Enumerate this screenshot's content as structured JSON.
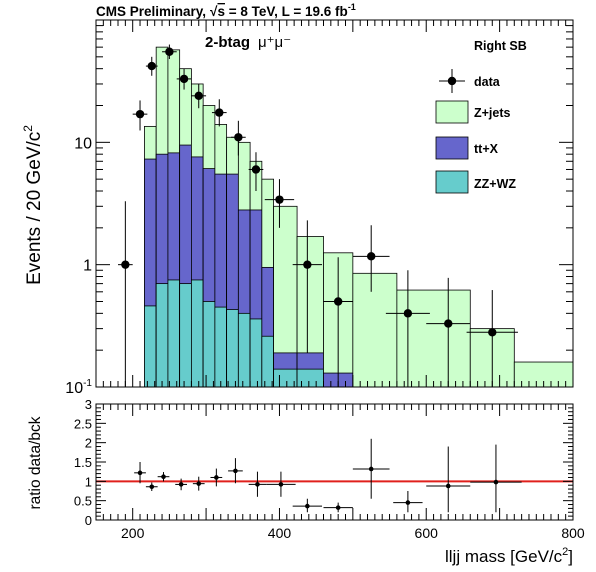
{
  "header": {
    "left": "CMS Preliminary,",
    "sqrt_s_symbol": "√",
    "sqrt_s_var": "s",
    "energy": " = 8 TeV,  L = 19.6 fb",
    "lumi_exp": "-1"
  },
  "chart_data": [
    {
      "type": "bar",
      "panel": "main",
      "stacked": true,
      "log_y": true,
      "ylim": [
        0.1,
        100
      ],
      "xlim": [
        150,
        800
      ],
      "y_ticks": [
        {
          "value": 0.1,
          "label": "10",
          "sup": "-1"
        },
        {
          "value": 1,
          "label": "1"
        },
        {
          "value": 10,
          "label": "10"
        }
      ],
      "ylabel": "Events / 20 GeV/c",
      "ylabel_sup": "2",
      "annotation_main": "2-btag",
      "annotation_channel": "μ⁺μ⁻",
      "region_label": "Right SB",
      "colors": {
        "zjets": "#ccffcc",
        "ttx": "#6666cc",
        "zzwz": "#66cccc",
        "data": "#000000"
      },
      "legend": [
        "data",
        "Z+jets",
        "tt+X",
        "ZZ+WZ"
      ],
      "bins": [
        {
          "x0": 200,
          "x1": 216,
          "total": 0,
          "ttx": 0,
          "zzwz": 0
        },
        {
          "x0": 216,
          "x1": 232,
          "total": 13.5,
          "ttx": 7.3,
          "zzwz": 0.46
        },
        {
          "x0": 232,
          "x1": 248,
          "total": 60,
          "ttx": 8.0,
          "zzwz": 0.7
        },
        {
          "x0": 248,
          "x1": 264,
          "total": 57,
          "ttx": 8.2,
          "zzwz": 0.75
        },
        {
          "x0": 264,
          "x1": 280,
          "total": 40,
          "ttx": 9.5,
          "zzwz": 0.7
        },
        {
          "x0": 280,
          "x1": 296,
          "total": 30,
          "ttx": 7.6,
          "zzwz": 0.75
        },
        {
          "x0": 296,
          "x1": 312,
          "total": 20,
          "ttx": 6.1,
          "zzwz": 0.5
        },
        {
          "x0": 312,
          "x1": 328,
          "total": 14,
          "ttx": 5.5,
          "zzwz": 0.45
        },
        {
          "x0": 328,
          "x1": 344,
          "total": 11,
          "ttx": 5.5,
          "zzwz": 0.43
        },
        {
          "x0": 344,
          "x1": 360,
          "total": 10,
          "ttx": 2.8,
          "zzwz": 0.4
        },
        {
          "x0": 360,
          "x1": 376,
          "total": 7,
          "ttx": 2.8,
          "zzwz": 0.36
        },
        {
          "x0": 376,
          "x1": 392,
          "total": 5,
          "ttx": 0.95,
          "zzwz": 0.26
        },
        {
          "x0": 392,
          "x1": 424,
          "total": 3.0,
          "ttx": 0.19,
          "zzwz": 0.14
        },
        {
          "x0": 424,
          "x1": 460,
          "total": 1.7,
          "ttx": 0.19,
          "zzwz": 0.14
        },
        {
          "x0": 460,
          "x1": 500,
          "total": 1.25,
          "ttx": 0.13,
          "zzwz": 0.1
        },
        {
          "x0": 500,
          "x1": 560,
          "total": 0.85,
          "ttx": 0,
          "zzwz": 0
        },
        {
          "x0": 560,
          "x1": 660,
          "total": 0.62,
          "ttx": 0,
          "zzwz": 0
        },
        {
          "x0": 660,
          "x1": 720,
          "total": 0.3,
          "ttx": 0,
          "zzwz": 0
        },
        {
          "x0": 720,
          "x1": 800,
          "total": 0.16,
          "ttx": 0,
          "zzwz": 0
        }
      ],
      "data_points": [
        {
          "x": 190,
          "xerr": 10,
          "y": 1.0,
          "ylo": 0.1,
          "yhi": 3.3
        },
        {
          "x": 210,
          "xerr": 10,
          "y": 17,
          "ylo": 12.5,
          "yhi": 22
        },
        {
          "x": 226,
          "xerr": 8,
          "y": 42,
          "ylo": 35,
          "yhi": 50
        },
        {
          "x": 250,
          "xerr": 10,
          "y": 55,
          "ylo": 48,
          "yhi": 63
        },
        {
          "x": 270,
          "xerr": 10,
          "y": 33,
          "ylo": 27,
          "yhi": 40
        },
        {
          "x": 290,
          "xerr": 10,
          "y": 24,
          "ylo": 19,
          "yhi": 30
        },
        {
          "x": 318,
          "xerr": 10,
          "y": 17.5,
          "ylo": 13.5,
          "yhi": 22.5
        },
        {
          "x": 344,
          "xerr": 10,
          "y": 11,
          "ylo": 7.8,
          "yhi": 15
        },
        {
          "x": 368,
          "xerr": 10,
          "y": 6,
          "ylo": 4,
          "yhi": 8.3
        },
        {
          "x": 400,
          "xerr": 20,
          "y": 3.4,
          "ylo": 2,
          "yhi": 5
        },
        {
          "x": 438,
          "xerr": 20,
          "y": 1.0,
          "ylo": 0.19,
          "yhi": 2.3
        },
        {
          "x": 480,
          "xerr": 20,
          "y": 0.5,
          "ylo": 0.1,
          "yhi": 1.15
        },
        {
          "x": 525,
          "xerr": 25,
          "y": 1.17,
          "ylo": 0.6,
          "yhi": 2.1
        },
        {
          "x": 575,
          "xerr": 30,
          "y": 0.4,
          "ylo": 0.1,
          "yhi": 0.9
        },
        {
          "x": 630,
          "xerr": 30,
          "y": 0.33,
          "ylo": 0.1,
          "yhi": 0.78
        },
        {
          "x": 690,
          "xerr": 35,
          "y": 0.28,
          "ylo": 0.1,
          "yhi": 0.62
        }
      ]
    },
    {
      "type": "scatter",
      "panel": "ratio",
      "ylim": [
        0,
        3
      ],
      "xlim": [
        150,
        800
      ],
      "y_ticks": [
        0,
        0.5,
        1,
        1.5,
        2,
        2.5,
        3
      ],
      "y_tick_labels": [
        "0",
        "0.5",
        "1",
        "1.5",
        "2",
        "2.5",
        "3"
      ],
      "x_ticks": [
        200,
        400,
        600,
        800
      ],
      "x_tick_labels": [
        "200",
        "400",
        "600",
        "800"
      ],
      "ylabel": "ratio data/bck",
      "xlabel": "lljj mass [GeV/c",
      "xlabel_sup": "2",
      "xlabel_end": "]",
      "reference_line": 1,
      "reference_color": "#e0201c",
      "points": [
        {
          "x": 210,
          "xerr": 8,
          "y": 1.22,
          "ylo": 0.95,
          "yhi": 1.5
        },
        {
          "x": 226,
          "xerr": 8,
          "y": 0.86,
          "ylo": 0.75,
          "yhi": 0.97
        },
        {
          "x": 242,
          "xerr": 8,
          "y": 1.12,
          "ylo": 1.0,
          "yhi": 1.24
        },
        {
          "x": 266,
          "xerr": 8,
          "y": 0.92,
          "ylo": 0.77,
          "yhi": 1.07
        },
        {
          "x": 290,
          "xerr": 8,
          "y": 0.94,
          "ylo": 0.76,
          "yhi": 1.12
        },
        {
          "x": 314,
          "xerr": 8,
          "y": 1.1,
          "ylo": 0.87,
          "yhi": 1.33
        },
        {
          "x": 340,
          "xerr": 10,
          "y": 1.27,
          "ylo": 0.95,
          "yhi": 1.6
        },
        {
          "x": 370,
          "xerr": 12,
          "y": 0.92,
          "ylo": 0.6,
          "yhi": 1.25
        },
        {
          "x": 402,
          "xerr": 20,
          "y": 0.92,
          "ylo": 0.6,
          "yhi": 1.25
        },
        {
          "x": 438,
          "xerr": 20,
          "y": 0.36,
          "ylo": 0.2,
          "yhi": 0.55
        },
        {
          "x": 480,
          "xerr": 20,
          "y": 0.32,
          "ylo": 0.2,
          "yhi": 0.45
        },
        {
          "x": 525,
          "xerr": 25,
          "y": 1.32,
          "ylo": 0.55,
          "yhi": 2.1
        },
        {
          "x": 575,
          "xerr": 20,
          "y": 0.45,
          "ylo": 0.2,
          "yhi": 0.75
        },
        {
          "x": 630,
          "xerr": 30,
          "y": 0.88,
          "ylo": 0.2,
          "yhi": 1.9
        },
        {
          "x": 695,
          "xerr": 35,
          "y": 0.98,
          "ylo": 0.2,
          "yhi": 1.95
        }
      ]
    }
  ]
}
